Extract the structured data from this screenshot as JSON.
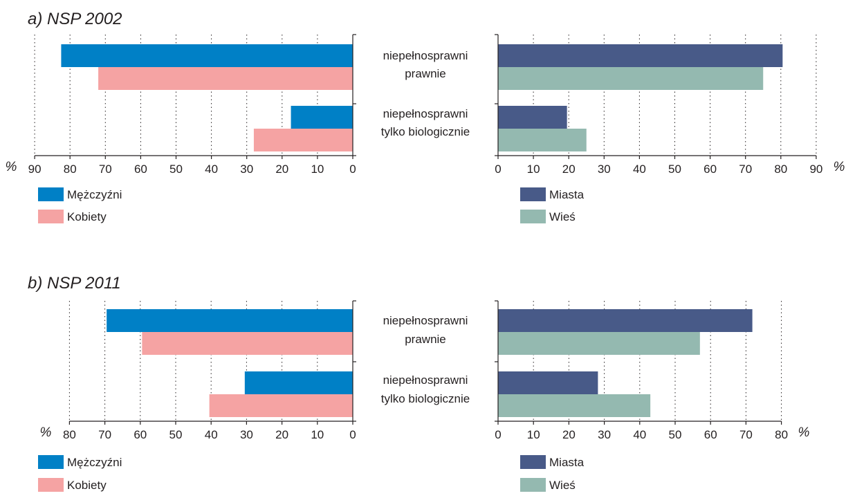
{
  "categories": [
    "niepełnosprawni prawnie",
    "niepełnosprawni tylko biologicznie"
  ],
  "category_lines": [
    [
      "niepełnosprawni",
      "prawnie"
    ],
    [
      "niepełnosprawni",
      "tylko biologicznie"
    ]
  ],
  "unit": "%",
  "colors": {
    "men": "#0080c6",
    "women": "#f5a3a3",
    "urban": "#485a88",
    "rural": "#94b9b0",
    "grid": "#231f20"
  },
  "chart_data": [
    {
      "type": "bar",
      "title": "a) NSP 2002",
      "categories": [
        "niepełnosprawni prawnie",
        "niepełnosprawni tylko biologicznie"
      ],
      "left": {
        "xlim": [
          0,
          90
        ],
        "ticks": [
          "0",
          "10",
          "20",
          "30",
          "40",
          "50",
          "60",
          "70",
          "80",
          "90"
        ],
        "direction": "reversed",
        "series": [
          {
            "name": "Mężczyźni",
            "values": [
              82.5,
              17.5
            ]
          },
          {
            "name": "Kobiety",
            "values": [
              72.0,
              28.0
            ]
          }
        ]
      },
      "right": {
        "xlim": [
          0,
          90
        ],
        "ticks": [
          "0",
          "10",
          "20",
          "30",
          "40",
          "50",
          "60",
          "70",
          "80",
          "90"
        ],
        "series": [
          {
            "name": "Miasta",
            "values": [
              80.5,
              19.5
            ]
          },
          {
            "name": "Wieś",
            "values": [
              75.0,
              25.0
            ]
          }
        ]
      },
      "grid": true,
      "legend_position": "bottom-left"
    },
    {
      "type": "bar",
      "title": "b) NSP 2011",
      "categories": [
        "niepełnosprawni prawnie",
        "niepełnosprawni tylko biologicznie"
      ],
      "left": {
        "xlim": [
          0,
          80
        ],
        "ticks": [
          "0",
          "10",
          "20",
          "30",
          "40",
          "50",
          "60",
          "70",
          "80"
        ],
        "direction": "reversed",
        "series": [
          {
            "name": "Mężczyźni",
            "values": [
              69.5,
              30.5
            ]
          },
          {
            "name": "Kobiety",
            "values": [
              59.5,
              40.5
            ]
          }
        ]
      },
      "right": {
        "xlim": [
          0,
          80
        ],
        "ticks": [
          "0",
          "10",
          "20",
          "30",
          "40",
          "50",
          "60",
          "70",
          "80"
        ],
        "series": [
          {
            "name": "Miasta",
            "values": [
              71.8,
              28.2
            ]
          },
          {
            "name": "Wieś",
            "values": [
              57.0,
              43.0
            ]
          }
        ]
      },
      "grid": true,
      "legend_position": "bottom-left"
    }
  ]
}
